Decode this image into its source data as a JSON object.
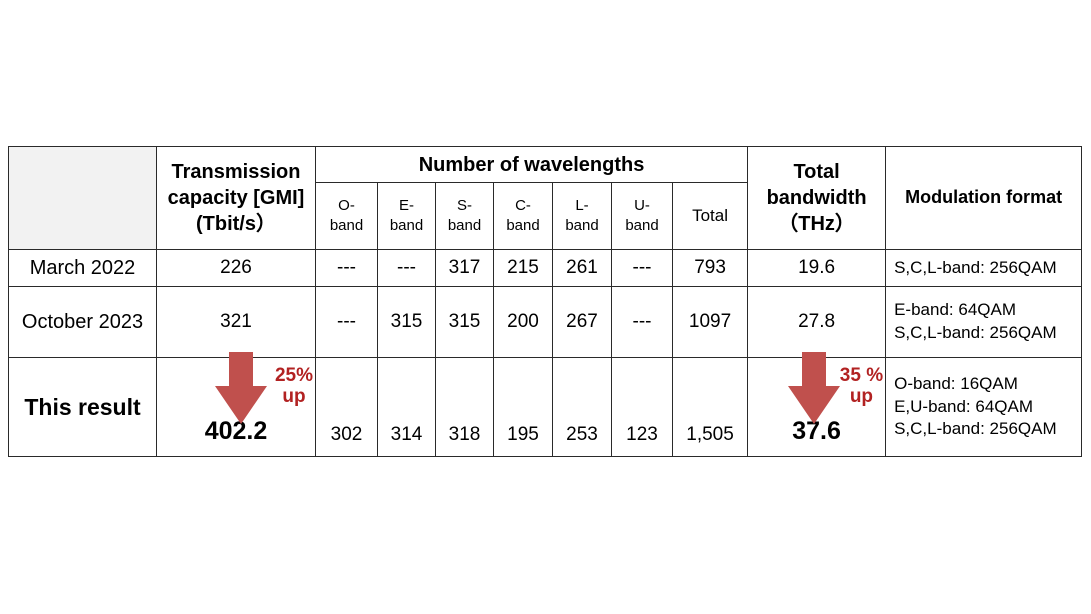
{
  "header": {
    "capacity": [
      "Transmission",
      "capacity [GMI]",
      "(Tbit/s）"
    ],
    "wavelengths_title": "Number of wavelengths",
    "bands": [
      [
        "O-",
        "band"
      ],
      [
        "E-",
        "band"
      ],
      [
        "S-",
        "band"
      ],
      [
        "C-",
        "band"
      ],
      [
        "L-",
        "band"
      ],
      [
        "U-",
        "band"
      ]
    ],
    "total": "Total",
    "bandwidth": [
      "Total",
      "bandwidth",
      "（THz）"
    ],
    "modulation": "Modulation format"
  },
  "rows": [
    {
      "label": "March 2022",
      "capacity": "226",
      "bands": [
        "---",
        "---",
        "317",
        "215",
        "261",
        "---"
      ],
      "total": "793",
      "bandwidth": "19.6",
      "modulation": [
        "S,C,L-band: 256QAM"
      ]
    },
    {
      "label": "October 2023",
      "capacity": "321",
      "bands": [
        "---",
        "315",
        "315",
        "200",
        "267",
        "---"
      ],
      "total": "1097",
      "bandwidth": "27.8",
      "modulation": [
        "E-band: 64QAM",
        "S,C,L-band: 256QAM"
      ]
    },
    {
      "label": "This result",
      "capacity": "402.2",
      "bands": [
        "302",
        "314",
        "318",
        "195",
        "253",
        "123"
      ],
      "total": "1,505",
      "bandwidth": "37.6",
      "modulation": [
        "O-band: 16QAM",
        "E,U-band: 64QAM",
        "S,C,L-band: 256QAM"
      ]
    }
  ],
  "annotations": {
    "capacity_up": [
      "25%",
      "up"
    ],
    "bandwidth_up": [
      "35 %",
      "up"
    ]
  },
  "colors": {
    "arrow": "#c0504d",
    "up_text": "#b22222",
    "header_bg": "#f2f2f2"
  }
}
